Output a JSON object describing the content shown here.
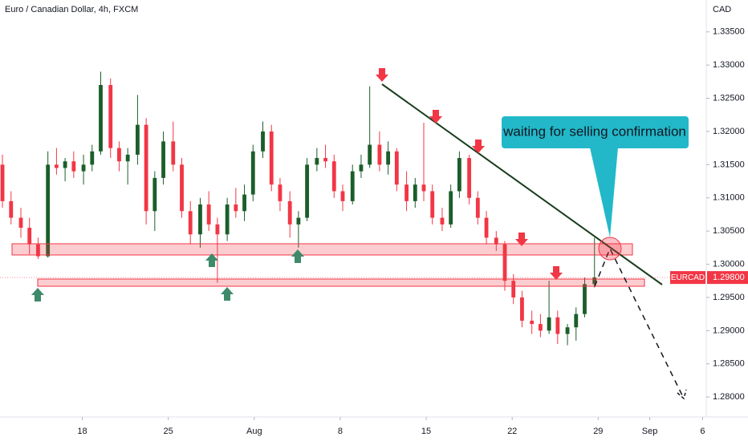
{
  "chart_data": {
    "type": "candlestick",
    "title": "Euro / Canadian Dollar, 4h, FXCM",
    "currency": "CAD",
    "symbol": "EURCAD",
    "last_price": {
      "value": 1.298,
      "label": "1.29800"
    },
    "annotation": "waiting for selling confirmation",
    "up_color": "#1b5e2a",
    "down_color": "#f23645",
    "xlim": [
      11.3,
      68.8
    ],
    "xticks": [
      {
        "value": 18,
        "label": "18"
      },
      {
        "value": 25,
        "label": "25"
      },
      {
        "value": 32,
        "label": "Aug"
      },
      {
        "value": 39,
        "label": "8"
      },
      {
        "value": 46,
        "label": "15"
      },
      {
        "value": 53,
        "label": "22"
      },
      {
        "value": 60,
        "label": "29"
      },
      {
        "value": 64.2,
        "label": "Sep"
      },
      {
        "value": 68.5,
        "label": "6"
      }
    ],
    "ylim": [
      1.277,
      1.3398
    ],
    "yticks": [
      {
        "value": 1.335,
        "label": "1.33500"
      },
      {
        "value": 1.33,
        "label": "1.33000"
      },
      {
        "value": 1.325,
        "label": "1.32500"
      },
      {
        "value": 1.32,
        "label": "1.32000"
      },
      {
        "value": 1.315,
        "label": "1.31500"
      },
      {
        "value": 1.31,
        "label": "1.31000"
      },
      {
        "value": 1.305,
        "label": "1.30500"
      },
      {
        "value": 1.3,
        "label": "1.30000"
      },
      {
        "value": 1.295,
        "label": "1.29500"
      },
      {
        "value": 1.29,
        "label": "1.29000"
      },
      {
        "value": 1.285,
        "label": "1.28500"
      },
      {
        "value": 1.28,
        "label": "1.28000"
      }
    ],
    "x": [
      11.5,
      12.2,
      13.0,
      13.7,
      14.4,
      15.2,
      15.9,
      16.6,
      17.3,
      18.1,
      18.8,
      19.5,
      20.3,
      21.0,
      21.7,
      22.5,
      23.2,
      23.9,
      24.6,
      25.4,
      26.1,
      26.8,
      27.6,
      28.3,
      29.0,
      29.8,
      30.5,
      31.2,
      31.9,
      32.7,
      33.4,
      34.1,
      34.9,
      35.6,
      36.3,
      37.1,
      37.8,
      38.5,
      39.2,
      40.0,
      40.7,
      41.4,
      42.2,
      42.9,
      43.6,
      44.4,
      45.1,
      45.8,
      46.5,
      47.3,
      48.0,
      48.7,
      49.5,
      50.2,
      50.9,
      51.7,
      52.4,
      53.1,
      53.8,
      54.6,
      55.3,
      56.0,
      56.7,
      57.5,
      58.2,
      58.9,
      59.7
    ],
    "open": [
      1.315,
      1.3095,
      1.307,
      1.3055,
      1.303,
      1.3012,
      1.315,
      1.3145,
      1.3155,
      1.314,
      1.315,
      1.317,
      1.327,
      1.3175,
      1.3155,
      1.3165,
      1.321,
      1.308,
      1.313,
      1.3185,
      1.315,
      1.308,
      1.3045,
      1.309,
      1.306,
      1.3045,
      1.309,
      1.308,
      1.3105,
      1.317,
      1.32,
      1.312,
      1.3095,
      1.306,
      1.307,
      1.315,
      1.316,
      1.3155,
      1.311,
      1.3095,
      1.314,
      1.315,
      1.318,
      1.315,
      1.317,
      1.312,
      1.3095,
      1.312,
      1.311,
      1.307,
      1.306,
      1.311,
      1.316,
      1.31,
      1.307,
      1.304,
      1.303,
      1.2975,
      1.295,
      1.2915,
      1.291,
      1.29,
      1.292,
      1.2895,
      1.2905,
      1.2925,
      1.297
    ],
    "high": [
      1.3165,
      1.311,
      1.3085,
      1.307,
      1.304,
      1.317,
      1.3175,
      1.316,
      1.317,
      1.3165,
      1.318,
      1.329,
      1.328,
      1.3185,
      1.3175,
      1.3255,
      1.322,
      1.314,
      1.32,
      1.3215,
      1.316,
      1.3095,
      1.31,
      1.311,
      1.307,
      1.31,
      1.3115,
      1.312,
      1.318,
      1.3215,
      1.321,
      1.313,
      1.311,
      1.308,
      1.316,
      1.3175,
      1.318,
      1.3165,
      1.312,
      1.315,
      1.3165,
      1.3268,
      1.32,
      1.3185,
      1.3175,
      1.314,
      1.313,
      1.3213,
      1.312,
      1.3085,
      1.312,
      1.317,
      1.3165,
      1.311,
      1.308,
      1.305,
      1.3035,
      1.2985,
      1.296,
      1.293,
      1.2925,
      1.2975,
      1.293,
      1.291,
      1.2935,
      1.298,
      1.304
    ],
    "low": [
      1.3085,
      1.306,
      1.304,
      1.3015,
      1.3008,
      1.301,
      1.3135,
      1.3125,
      1.313,
      1.312,
      1.314,
      1.3165,
      1.316,
      1.314,
      1.312,
      1.315,
      1.306,
      1.305,
      1.312,
      1.314,
      1.307,
      1.303,
      1.3025,
      1.305,
      1.2972,
      1.3035,
      1.307,
      1.3065,
      1.3095,
      1.316,
      1.311,
      1.308,
      1.304,
      1.3025,
      1.3065,
      1.314,
      1.3145,
      1.31,
      1.308,
      1.309,
      1.313,
      1.3145,
      1.314,
      1.3135,
      1.311,
      1.308,
      1.3085,
      1.3095,
      1.306,
      1.305,
      1.3055,
      1.31,
      1.309,
      1.306,
      1.303,
      1.302,
      1.296,
      1.294,
      1.2905,
      1.2895,
      1.289,
      1.2895,
      1.288,
      1.2878,
      1.2885,
      1.292,
      1.2965
    ],
    "close": [
      1.3095,
      1.307,
      1.3055,
      1.303,
      1.3012,
      1.315,
      1.3145,
      1.3155,
      1.314,
      1.315,
      1.317,
      1.327,
      1.3175,
      1.3155,
      1.3165,
      1.321,
      1.308,
      1.313,
      1.3185,
      1.315,
      1.308,
      1.3045,
      1.309,
      1.306,
      1.3045,
      1.309,
      1.308,
      1.3105,
      1.317,
      1.32,
      1.312,
      1.3095,
      1.306,
      1.307,
      1.315,
      1.316,
      1.3155,
      1.311,
      1.3095,
      1.314,
      1.315,
      1.318,
      1.315,
      1.317,
      1.312,
      1.3095,
      1.312,
      1.311,
      1.307,
      1.306,
      1.311,
      1.316,
      1.31,
      1.307,
      1.304,
      1.303,
      1.2975,
      1.295,
      1.2915,
      1.291,
      1.29,
      1.292,
      1.2895,
      1.2905,
      1.2925,
      1.297,
      1.298
    ]
  }
}
